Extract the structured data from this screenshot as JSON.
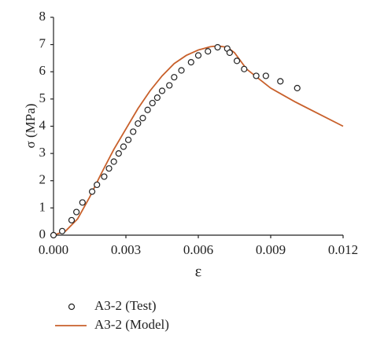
{
  "chart_data": {
    "type": "scatter",
    "x_label": "ε",
    "y_label": "σ (MPa)",
    "xlim": [
      0,
      0.012
    ],
    "ylim": [
      0,
      8
    ],
    "xticks": [
      {
        "value": 0,
        "label": "0.000"
      },
      {
        "value": 0.003,
        "label": "0.003"
      },
      {
        "value": 0.006,
        "label": "0.006"
      },
      {
        "value": 0.009,
        "label": "0.009"
      },
      {
        "value": 0.012,
        "label": "0.012"
      }
    ],
    "yticks": [
      0,
      1,
      2,
      3,
      4,
      5,
      6,
      7,
      8
    ],
    "grid": false,
    "series": [
      {
        "name": "A3-2 (Test)",
        "style": "markers",
        "color": "#222222",
        "x": [
          0,
          0.00036,
          0.00075,
          0.00095,
          0.0012,
          0.0016,
          0.0018,
          0.0021,
          0.0023,
          0.0025,
          0.0027,
          0.0029,
          0.0031,
          0.0033,
          0.0035,
          0.0037,
          0.0039,
          0.0041,
          0.0043,
          0.0045,
          0.0048,
          0.005,
          0.0053,
          0.0057,
          0.006,
          0.0064,
          0.0068,
          0.0072,
          0.0073,
          0.0076,
          0.0079,
          0.0084,
          0.0088,
          0.0094,
          0.0101
        ],
        "values": [
          0,
          0.15,
          0.55,
          0.85,
          1.2,
          1.6,
          1.85,
          2.15,
          2.45,
          2.7,
          3.0,
          3.25,
          3.5,
          3.8,
          4.1,
          4.3,
          4.6,
          4.85,
          5.05,
          5.3,
          5.5,
          5.8,
          6.05,
          6.35,
          6.6,
          6.75,
          6.9,
          6.85,
          6.7,
          6.4,
          6.1,
          5.85,
          5.85,
          5.65,
          5.4
        ]
      },
      {
        "name": "A3-2 (Model)",
        "style": "line",
        "color": "#c8602b",
        "x": [
          0,
          0.0005,
          0.001,
          0.0015,
          0.002,
          0.0025,
          0.003,
          0.0035,
          0.004,
          0.0045,
          0.005,
          0.0055,
          0.006,
          0.0065,
          0.0068,
          0.0072,
          0.0075,
          0.008,
          0.0085,
          0.009,
          0.0095,
          0.01,
          0.011,
          0.012
        ],
        "values": [
          0,
          0.15,
          0.6,
          1.4,
          2.3,
          3.15,
          3.9,
          4.65,
          5.3,
          5.85,
          6.3,
          6.6,
          6.8,
          6.92,
          6.95,
          6.9,
          6.7,
          6.1,
          5.75,
          5.4,
          5.15,
          4.9,
          4.45,
          4.0
        ]
      }
    ]
  }
}
